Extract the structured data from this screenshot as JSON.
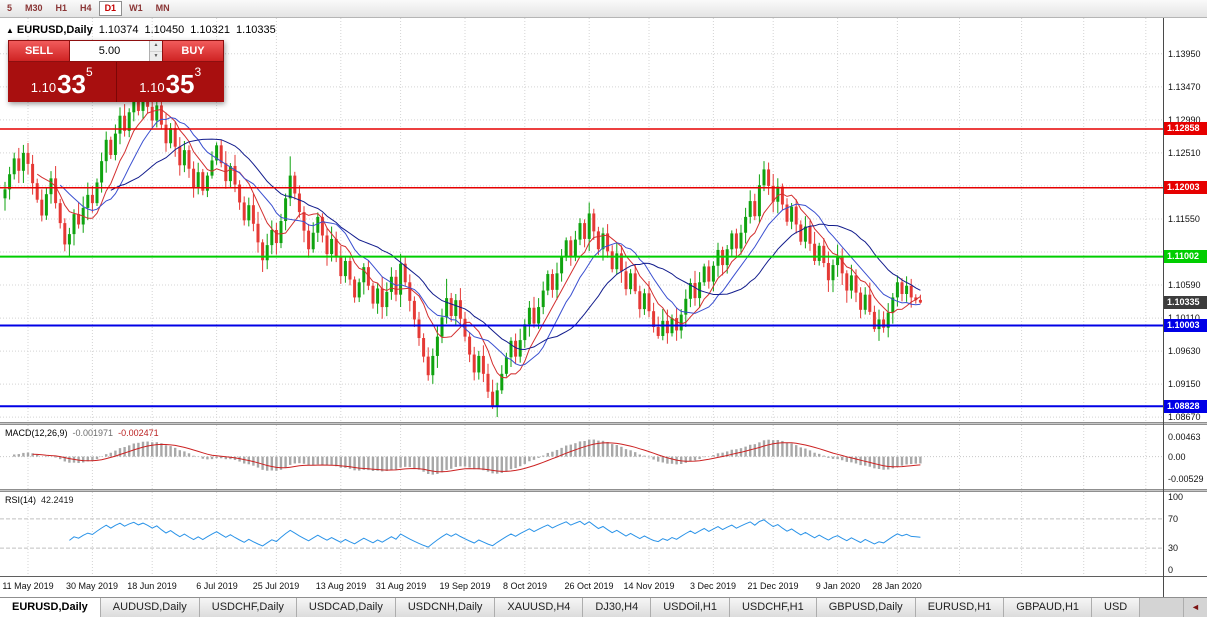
{
  "toolbar": {
    "timeframes": [
      {
        "label": "5",
        "active": false
      },
      {
        "label": "M30",
        "active": false
      },
      {
        "label": "H1",
        "active": false
      },
      {
        "label": "H4",
        "active": false
      },
      {
        "label": "D1",
        "active": true
      },
      {
        "label": "W1",
        "active": false
      },
      {
        "label": "MN",
        "active": false
      }
    ]
  },
  "chart_header": {
    "collapse_icon": "▲",
    "symbol": "EURUSD,Daily",
    "open": "1.10374",
    "high": "1.10450",
    "low": "1.10321",
    "close": "1.10335"
  },
  "trade_panel": {
    "sell_label": "SELL",
    "buy_label": "BUY",
    "volume": "5.00",
    "spin_up": "▲",
    "spin_down": "▼",
    "sell_price": {
      "prefix": "1.10",
      "big": "33",
      "sup": "5"
    },
    "buy_price": {
      "prefix": "1.10",
      "big": "35",
      "sup": "3"
    }
  },
  "price_axis": {
    "gridlines": [
      1.1395,
      1.1347,
      1.1299,
      1.1251,
      1.1203,
      1.1155,
      1.1107,
      1.1059,
      1.1011,
      1.0963,
      1.0915,
      1.0867
    ],
    "labels": [
      1.1395,
      1.1347,
      1.1299,
      1.1251,
      1.1203,
      1.1155,
      1.1059,
      1.1011,
      1.0963,
      1.0915,
      1.0867
    ]
  },
  "hlines": [
    {
      "price": 1.12858,
      "color": "#e60000",
      "width": 1.5
    },
    {
      "price": 1.12003,
      "color": "#e60000",
      "width": 1.5
    },
    {
      "price": 1.11002,
      "color": "#00ce00",
      "width": 2
    },
    {
      "price": 1.10003,
      "color": "#0000e6",
      "width": 2
    },
    {
      "price": 1.08828,
      "color": "#0000e6",
      "width": 2
    }
  ],
  "current_price": {
    "value": 1.10335,
    "badge_color": "#3c3c3c"
  },
  "macd": {
    "label": "MACD(12,26,9)",
    "value1": "-0.001971",
    "value2": "-0.002471",
    "axis": [
      {
        "v": 0.00463,
        "t": "0.00463"
      },
      {
        "v": 0,
        "t": "0.00"
      },
      {
        "v": -0.00529,
        "t": "-0.00529"
      }
    ],
    "fast": 12,
    "slow": 26,
    "signal": 9,
    "hist_color": "#a8a8a8",
    "signal_color": "#cc2222"
  },
  "rsi": {
    "label": "RSI(14)",
    "value": "42.2419",
    "axis": [
      {
        "v": 100,
        "t": "100"
      },
      {
        "v": 70,
        "t": "70"
      },
      {
        "v": 30,
        "t": "30"
      },
      {
        "v": 0,
        "t": "0"
      }
    ],
    "levels": [
      70,
      30
    ],
    "period": 14,
    "line_color": "#2a93e8"
  },
  "x_axis": {
    "labels": [
      "11 May 2019",
      "30 May 2019",
      "18 Jun 2019",
      "6 Jul 2019",
      "25 Jul 2019",
      "13 Aug 2019",
      "31 Aug 2019",
      "19 Sep 2019",
      "8 Oct 2019",
      "26 Oct 2019",
      "14 Nov 2019",
      "3 Dec 2019",
      "21 Dec 2019",
      "9 Jan 2020",
      "28 Jan 2020"
    ],
    "label_indices": [
      5,
      19,
      32,
      46,
      59,
      73,
      86,
      100,
      113,
      127,
      140,
      154,
      167,
      181,
      194
    ]
  },
  "tabs": {
    "scroll_left": "◄",
    "items": [
      {
        "label": "EURUSD,Daily",
        "active": true
      },
      {
        "label": "AUDUSD,Daily"
      },
      {
        "label": "USDCHF,Daily"
      },
      {
        "label": "USDCAD,Daily"
      },
      {
        "label": "USDCNH,Daily"
      },
      {
        "label": "XAUUSD,H4"
      },
      {
        "label": "DJ30,H4"
      },
      {
        "label": "USDOil,H1"
      },
      {
        "label": "USDCHF,H1"
      },
      {
        "label": "GBPUSD,Daily"
      },
      {
        "label": "EURUSD,H1"
      },
      {
        "label": "GBPAUD,H1"
      },
      {
        "label": "USD"
      }
    ]
  },
  "chart_data": {
    "type": "candlestick",
    "symbol": "EURUSD",
    "timeframe": "Daily",
    "last_ohlc": {
      "open": 1.10374,
      "high": 1.1045,
      "low": 1.10321,
      "close": 1.10335
    },
    "ylim": [
      1.086,
      1.1447
    ],
    "up_color": "#0fa30f",
    "down_color": "#e53935",
    "first_open": 1.1185,
    "closes": [
      1.1198,
      1.122,
      1.1243,
      1.1225,
      1.1251,
      1.1235,
      1.1207,
      1.1183,
      1.116,
      1.1191,
      1.1214,
      1.1178,
      1.1149,
      1.1118,
      1.1133,
      1.1162,
      1.1147,
      1.1171,
      1.119,
      1.1178,
      1.1208,
      1.1239,
      1.127,
      1.1248,
      1.1279,
      1.1305,
      1.1283,
      1.131,
      1.133,
      1.1312,
      1.1333,
      1.1318,
      1.1298,
      1.132,
      1.1292,
      1.1265,
      1.1287,
      1.126,
      1.1233,
      1.1255,
      1.1228,
      1.1201,
      1.1223,
      1.1196,
      1.1218,
      1.124,
      1.1262,
      1.1236,
      1.121,
      1.1232,
      1.1205,
      1.1179,
      1.1153,
      1.1175,
      1.1148,
      1.1121,
      1.1095,
      1.1117,
      1.1139,
      1.112,
      1.1152,
      1.1185,
      1.1218,
      1.1192,
      1.1165,
      1.1138,
      1.1111,
      1.1135,
      1.1158,
      1.1131,
      1.1104,
      1.1126,
      1.1099,
      1.1072,
      1.1094,
      1.1067,
      1.1041,
      1.1063,
      1.1085,
      1.1058,
      1.1032,
      1.1054,
      1.1027,
      1.1049,
      1.1071,
      1.1045,
      1.109,
      1.1063,
      1.1036,
      1.1009,
      1.0982,
      1.0955,
      1.0928,
      1.0956,
      1.0984,
      1.1012,
      1.104,
      1.1014,
      1.1037,
      1.101,
      1.0984,
      1.0958,
      1.0932,
      1.0956,
      1.093,
      1.0904,
      1.0882,
      1.0906,
      1.093,
      1.0954,
      1.0978,
      1.0955,
      1.0979,
      1.1002,
      1.1026,
      1.1003,
      1.1027,
      1.1051,
      1.1075,
      1.1052,
      1.1076,
      1.11,
      1.1124,
      1.1101,
      1.1125,
      1.1149,
      1.1126,
      1.1163,
      1.1137,
      1.1111,
      1.1134,
      1.1108,
      1.1082,
      1.1105,
      1.1079,
      1.1053,
      1.1076,
      1.105,
      1.1024,
      1.1047,
      1.1021,
      1.0998,
      1.0985,
      1.1007,
      1.0989,
      1.1011,
      1.0993,
      1.1016,
      1.1039,
      1.1062,
      1.104,
      1.1063,
      1.1086,
      1.1064,
      1.1087,
      1.111,
      1.1088,
      1.1111,
      1.1134,
      1.1112,
      1.1135,
      1.1158,
      1.1181,
      1.1159,
      1.1204,
      1.1227,
      1.1203,
      1.118,
      1.1202,
      1.1176,
      1.1151,
      1.1173,
      1.1147,
      1.1122,
      1.1144,
      1.1119,
      1.1094,
      1.1116,
      1.1091,
      1.1066,
      1.1088,
      1.1101,
      1.1076,
      1.1051,
      1.1073,
      1.1048,
      1.1023,
      1.1045,
      1.102,
      1.0995,
      1.1009,
      1.0997,
      1.1019,
      1.1041,
      1.1063,
      1.1046,
      1.1058,
      1.1041,
      1.1037,
      1.10335
    ],
    "overrides": {
      "13": {
        "low": 1.1108
      },
      "28": {
        "high": 1.1338
      },
      "30": {
        "high": 1.1345
      },
      "56": {
        "low": 1.1078
      },
      "62": {
        "high": 1.1246
      },
      "92": {
        "low": 1.092
      },
      "96": {
        "high": 1.1068
      },
      "106": {
        "low": 1.0879
      },
      "127": {
        "high": 1.1179
      },
      "142": {
        "low": 1.0981
      },
      "146": {
        "low": 1.0978
      },
      "165": {
        "high": 1.1239
      },
      "189": {
        "low": 1.0991
      },
      "194": {
        "high": 1.1073
      },
      "199": {
        "open": 1.10374,
        "high": 1.1045,
        "low": 1.10321
      }
    },
    "mas": [
      {
        "period": 8,
        "color": "#d32f2f"
      },
      {
        "period": 13,
        "color": "#3a4fd0"
      },
      {
        "period": 24,
        "color": "#121c8c"
      }
    ]
  }
}
